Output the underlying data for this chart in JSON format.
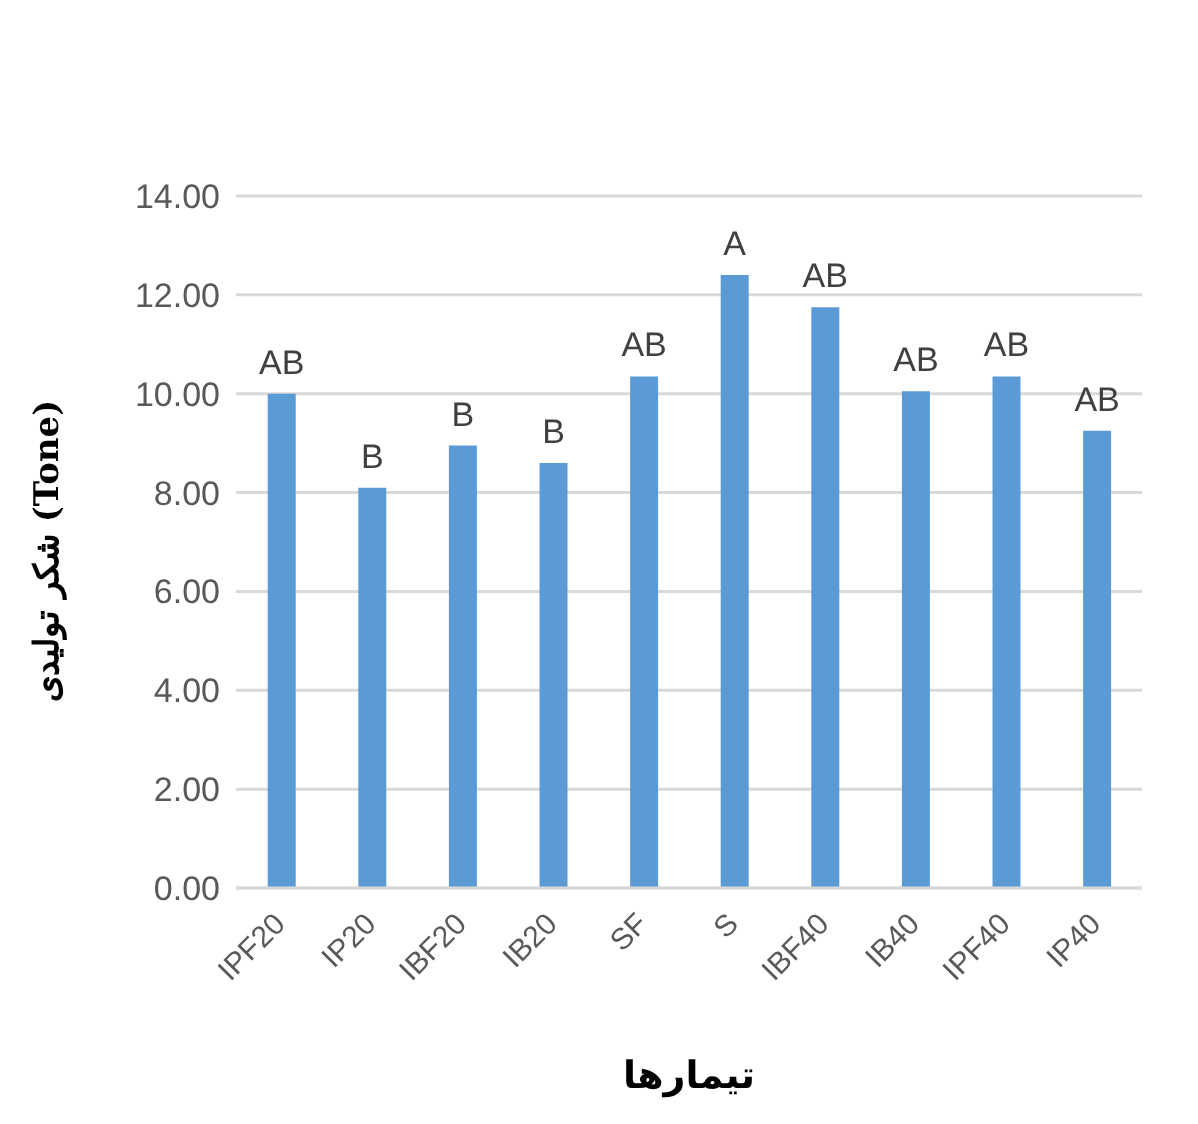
{
  "chart_data": {
    "type": "bar",
    "xlabel": "تیمارها",
    "ylabel": "شکر تولیدی (Tone)",
    "categories": [
      "IPF20",
      "IP20",
      "IBF20",
      "IB20",
      "SF",
      "S",
      "IBF40",
      "IB40",
      "IPF40",
      "IP40"
    ],
    "values": [
      10.0,
      8.1,
      8.95,
      8.6,
      10.35,
      12.4,
      11.75,
      10.05,
      10.35,
      9.25
    ],
    "value_labels": [
      "AB",
      "B",
      "B",
      "B",
      "AB",
      "A",
      "AB",
      "AB",
      "AB",
      "AB"
    ],
    "color": "#5b9bd5",
    "ylim": [
      0,
      14
    ],
    "yticks": [
      {
        "value": 0,
        "label": "0.00"
      },
      {
        "value": 2,
        "label": "2.00"
      },
      {
        "value": 4,
        "label": "4.00"
      },
      {
        "value": 6,
        "label": "6.00"
      },
      {
        "value": 8,
        "label": "8.00"
      },
      {
        "value": 10,
        "label": "10.00"
      },
      {
        "value": 12,
        "label": "12.00"
      },
      {
        "value": 14,
        "label": "14.00"
      }
    ],
    "grid": "y",
    "legend": false
  }
}
